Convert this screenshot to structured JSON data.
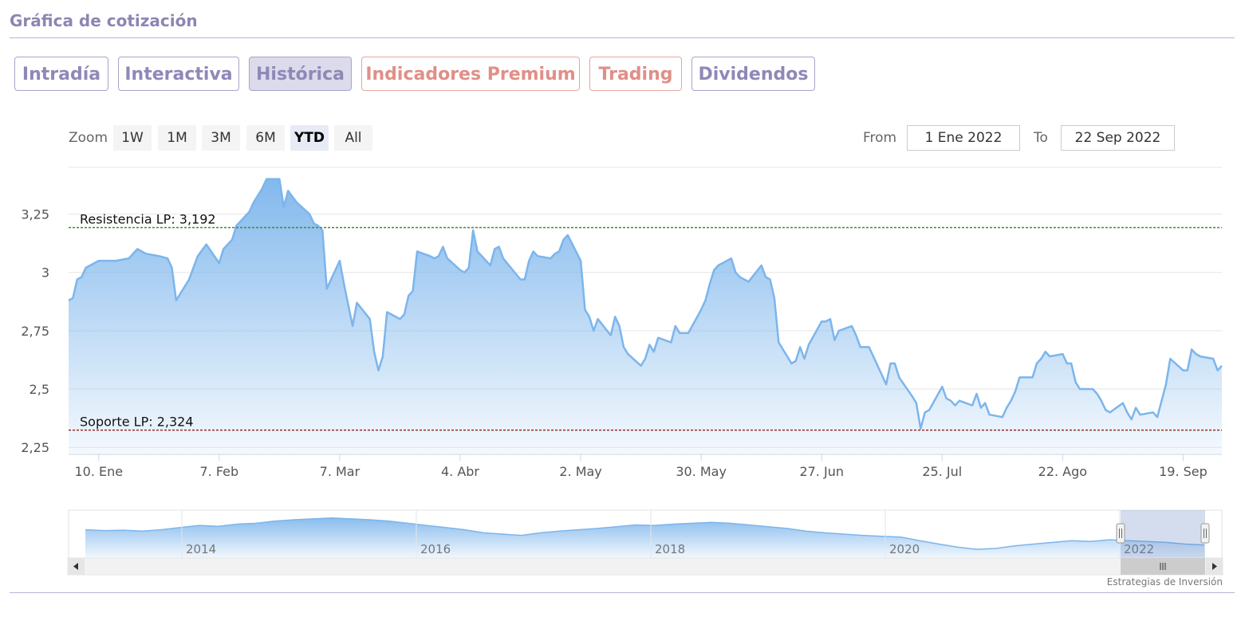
{
  "header": {
    "title": "Gráfica de cotización"
  },
  "tabs": [
    {
      "label": "Intradía",
      "active": false,
      "premium": false
    },
    {
      "label": "Interactiva",
      "active": false,
      "premium": false
    },
    {
      "label": "Histórica",
      "active": true,
      "premium": false
    },
    {
      "label": "Indicadores Premium",
      "active": false,
      "premium": true
    },
    {
      "label": "Trading",
      "active": false,
      "premium": true
    },
    {
      "label": "Dividendos",
      "active": false,
      "premium": false
    }
  ],
  "range_selector": {
    "zoom_label": "Zoom",
    "buttons": [
      "1W",
      "1M",
      "3M",
      "6M",
      "YTD",
      "All"
    ],
    "active": "YTD",
    "from_label": "From",
    "from_value": "1 Ene 2022",
    "to_label": "To",
    "to_value": "22 Sep 2022"
  },
  "credit": "Estrategias de Inversión",
  "colors": {
    "line": "#7cb5ec",
    "resistance": "#3a8a3a",
    "support": "#8b1a1a",
    "accent": "#8c86b3"
  },
  "chart_data": {
    "type": "area",
    "title": "",
    "xlabel": "",
    "ylabel": "",
    "x_range": [
      "2022-01-01",
      "2022-09-22"
    ],
    "ylim": [
      2.22,
      3.45
    ],
    "yticks": [
      2.25,
      2.5,
      2.75,
      3,
      3.25
    ],
    "ytick_labels": [
      "2,25",
      "2,5",
      "2,75",
      "3",
      "3,25"
    ],
    "xticks": [
      {
        "date": "2022-01-10",
        "label": "10. Ene"
      },
      {
        "date": "2022-02-07",
        "label": "7. Feb"
      },
      {
        "date": "2022-03-07",
        "label": "7. Mar"
      },
      {
        "date": "2022-04-04",
        "label": "4. Abr"
      },
      {
        "date": "2022-05-02",
        "label": "2. May"
      },
      {
        "date": "2022-05-30",
        "label": "30. May"
      },
      {
        "date": "2022-06-27",
        "label": "27. Jun"
      },
      {
        "date": "2022-07-25",
        "label": "25. Jul"
      },
      {
        "date": "2022-08-22",
        "label": "22. Ago"
      },
      {
        "date": "2022-09-19",
        "label": "19. Sep"
      }
    ],
    "series": [
      {
        "points": [
          [
            "2022-01-03",
            2.88
          ],
          [
            "2022-01-04",
            2.89
          ],
          [
            "2022-01-05",
            2.97
          ],
          [
            "2022-01-06",
            2.98
          ],
          [
            "2022-01-07",
            3.02
          ],
          [
            "2022-01-10",
            3.05
          ],
          [
            "2022-01-12",
            3.05
          ],
          [
            "2022-01-14",
            3.05
          ],
          [
            "2022-01-17",
            3.06
          ],
          [
            "2022-01-19",
            3.1
          ],
          [
            "2022-01-21",
            3.08
          ],
          [
            "2022-01-24",
            3.07
          ],
          [
            "2022-01-26",
            3.06
          ],
          [
            "2022-01-27",
            3.02
          ],
          [
            "2022-01-28",
            2.88
          ],
          [
            "2022-01-31",
            2.97
          ],
          [
            "2022-02-02",
            3.07
          ],
          [
            "2022-02-04",
            3.12
          ],
          [
            "2022-02-07",
            3.04
          ],
          [
            "2022-02-08",
            3.1
          ],
          [
            "2022-02-10",
            3.14
          ],
          [
            "2022-02-11",
            3.2
          ],
          [
            "2022-02-14",
            3.26
          ],
          [
            "2022-02-15",
            3.3
          ],
          [
            "2022-02-17",
            3.36
          ],
          [
            "2022-02-18",
            3.4
          ],
          [
            "2022-02-21",
            3.4
          ],
          [
            "2022-02-22",
            3.28
          ],
          [
            "2022-02-23",
            3.35
          ],
          [
            "2022-02-25",
            3.3
          ],
          [
            "2022-02-28",
            3.25
          ],
          [
            "2022-03-01",
            3.21
          ],
          [
            "2022-03-02",
            3.2
          ],
          [
            "2022-03-03",
            3.18
          ],
          [
            "2022-03-04",
            2.93
          ],
          [
            "2022-03-07",
            3.05
          ],
          [
            "2022-03-08",
            2.95
          ],
          [
            "2022-03-10",
            2.77
          ],
          [
            "2022-03-11",
            2.87
          ],
          [
            "2022-03-14",
            2.8
          ],
          [
            "2022-03-15",
            2.66
          ],
          [
            "2022-03-16",
            2.58
          ],
          [
            "2022-03-17",
            2.64
          ],
          [
            "2022-03-18",
            2.83
          ],
          [
            "2022-03-21",
            2.8
          ],
          [
            "2022-03-22",
            2.82
          ],
          [
            "2022-03-23",
            2.9
          ],
          [
            "2022-03-24",
            2.92
          ],
          [
            "2022-03-25",
            3.09
          ],
          [
            "2022-03-28",
            3.07
          ],
          [
            "2022-03-29",
            3.06
          ],
          [
            "2022-03-30",
            3.07
          ],
          [
            "2022-03-31",
            3.11
          ],
          [
            "2022-04-01",
            3.06
          ],
          [
            "2022-04-04",
            3.01
          ],
          [
            "2022-04-05",
            3.0
          ],
          [
            "2022-04-06",
            3.02
          ],
          [
            "2022-04-07",
            3.18
          ],
          [
            "2022-04-08",
            3.09
          ],
          [
            "2022-04-11",
            3.03
          ],
          [
            "2022-04-12",
            3.1
          ],
          [
            "2022-04-13",
            3.11
          ],
          [
            "2022-04-14",
            3.06
          ],
          [
            "2022-04-18",
            2.97
          ],
          [
            "2022-04-19",
            2.97
          ],
          [
            "2022-04-20",
            3.05
          ],
          [
            "2022-04-21",
            3.09
          ],
          [
            "2022-04-22",
            3.07
          ],
          [
            "2022-04-25",
            3.06
          ],
          [
            "2022-04-26",
            3.08
          ],
          [
            "2022-04-27",
            3.09
          ],
          [
            "2022-04-28",
            3.14
          ],
          [
            "2022-04-29",
            3.16
          ],
          [
            "2022-05-02",
            3.05
          ],
          [
            "2022-05-03",
            2.84
          ],
          [
            "2022-05-04",
            2.81
          ],
          [
            "2022-05-05",
            2.75
          ],
          [
            "2022-05-06",
            2.8
          ],
          [
            "2022-05-09",
            2.73
          ],
          [
            "2022-05-10",
            2.81
          ],
          [
            "2022-05-11",
            2.77
          ],
          [
            "2022-05-12",
            2.68
          ],
          [
            "2022-05-13",
            2.65
          ],
          [
            "2022-05-16",
            2.6
          ],
          [
            "2022-05-17",
            2.63
          ],
          [
            "2022-05-18",
            2.69
          ],
          [
            "2022-05-19",
            2.66
          ],
          [
            "2022-05-20",
            2.72
          ],
          [
            "2022-05-23",
            2.7
          ],
          [
            "2022-05-24",
            2.77
          ],
          [
            "2022-05-25",
            2.74
          ],
          [
            "2022-05-26",
            2.74
          ],
          [
            "2022-05-27",
            2.74
          ],
          [
            "2022-05-30",
            2.84
          ],
          [
            "2022-05-31",
            2.88
          ],
          [
            "2022-06-01",
            2.95
          ],
          [
            "2022-06-02",
            3.01
          ],
          [
            "2022-06-03",
            3.03
          ],
          [
            "2022-06-06",
            3.06
          ],
          [
            "2022-06-07",
            3.0
          ],
          [
            "2022-06-08",
            2.98
          ],
          [
            "2022-06-09",
            2.97
          ],
          [
            "2022-06-10",
            2.96
          ],
          [
            "2022-06-13",
            3.03
          ],
          [
            "2022-06-14",
            2.98
          ],
          [
            "2022-06-15",
            2.97
          ],
          [
            "2022-06-16",
            2.89
          ],
          [
            "2022-06-17",
            2.7
          ],
          [
            "2022-06-20",
            2.61
          ],
          [
            "2022-06-21",
            2.62
          ],
          [
            "2022-06-22",
            2.68
          ],
          [
            "2022-06-23",
            2.63
          ],
          [
            "2022-06-24",
            2.69
          ],
          [
            "2022-06-27",
            2.79
          ],
          [
            "2022-06-28",
            2.79
          ],
          [
            "2022-06-29",
            2.8
          ],
          [
            "2022-06-30",
            2.71
          ],
          [
            "2022-07-01",
            2.75
          ],
          [
            "2022-07-04",
            2.77
          ],
          [
            "2022-07-05",
            2.73
          ],
          [
            "2022-07-06",
            2.68
          ],
          [
            "2022-07-07",
            2.68
          ],
          [
            "2022-07-08",
            2.68
          ],
          [
            "2022-07-11",
            2.56
          ],
          [
            "2022-07-12",
            2.52
          ],
          [
            "2022-07-13",
            2.61
          ],
          [
            "2022-07-14",
            2.61
          ],
          [
            "2022-07-15",
            2.55
          ],
          [
            "2022-07-18",
            2.47
          ],
          [
            "2022-07-19",
            2.44
          ],
          [
            "2022-07-20",
            2.33
          ],
          [
            "2022-07-21",
            2.4
          ],
          [
            "2022-07-22",
            2.41
          ],
          [
            "2022-07-25",
            2.51
          ],
          [
            "2022-07-26",
            2.46
          ],
          [
            "2022-07-27",
            2.45
          ],
          [
            "2022-07-28",
            2.43
          ],
          [
            "2022-07-29",
            2.45
          ],
          [
            "2022-08-01",
            2.43
          ],
          [
            "2022-08-02",
            2.48
          ],
          [
            "2022-08-03",
            2.42
          ],
          [
            "2022-08-04",
            2.44
          ],
          [
            "2022-08-05",
            2.39
          ],
          [
            "2022-08-08",
            2.38
          ],
          [
            "2022-08-09",
            2.42
          ],
          [
            "2022-08-10",
            2.45
          ],
          [
            "2022-08-11",
            2.49
          ],
          [
            "2022-08-12",
            2.55
          ],
          [
            "2022-08-15",
            2.55
          ],
          [
            "2022-08-16",
            2.61
          ],
          [
            "2022-08-17",
            2.63
          ],
          [
            "2022-08-18",
            2.66
          ],
          [
            "2022-08-19",
            2.64
          ],
          [
            "2022-08-22",
            2.65
          ],
          [
            "2022-08-23",
            2.61
          ],
          [
            "2022-08-24",
            2.61
          ],
          [
            "2022-08-25",
            2.53
          ],
          [
            "2022-08-26",
            2.5
          ],
          [
            "2022-08-29",
            2.5
          ],
          [
            "2022-08-30",
            2.48
          ],
          [
            "2022-08-31",
            2.45
          ],
          [
            "2022-09-01",
            2.41
          ],
          [
            "2022-09-02",
            2.4
          ],
          [
            "2022-09-05",
            2.44
          ],
          [
            "2022-09-06",
            2.4
          ],
          [
            "2022-09-07",
            2.37
          ],
          [
            "2022-09-08",
            2.42
          ],
          [
            "2022-09-09",
            2.39
          ],
          [
            "2022-09-12",
            2.4
          ],
          [
            "2022-09-13",
            2.38
          ],
          [
            "2022-09-14",
            2.45
          ],
          [
            "2022-09-15",
            2.52
          ],
          [
            "2022-09-16",
            2.63
          ],
          [
            "2022-09-19",
            2.58
          ],
          [
            "2022-09-20",
            2.58
          ],
          [
            "2022-09-21",
            2.67
          ],
          [
            "2022-09-22",
            2.65
          ],
          [
            "2022-09-23",
            2.64
          ],
          [
            "2022-09-26",
            2.63
          ],
          [
            "2022-09-27",
            2.58
          ],
          [
            "2022-09-28",
            2.6
          ]
        ]
      }
    ],
    "annotations": [
      {
        "label": "Resistencia LP: 3,192",
        "value": 3.192,
        "style": "resistance"
      },
      {
        "label": "Soporte LP: 2,324",
        "value": 2.324,
        "style": "support"
      }
    ],
    "navigator": {
      "year_labels": [
        "2014",
        "2016",
        "2018",
        "2020",
        "2022"
      ],
      "values": [
        2.95,
        2.93,
        2.94,
        2.92,
        2.95,
        3.0,
        3.05,
        3.03,
        3.08,
        3.1,
        3.15,
        3.18,
        3.2,
        3.22,
        3.2,
        3.18,
        3.15,
        3.1,
        3.05,
        3.0,
        2.95,
        2.88,
        2.85,
        2.82,
        2.88,
        2.92,
        2.95,
        2.98,
        3.02,
        3.06,
        3.05,
        3.08,
        3.1,
        3.12,
        3.1,
        3.06,
        3.02,
        2.98,
        2.92,
        2.88,
        2.85,
        2.82,
        2.8,
        2.78,
        2.7,
        2.62,
        2.55,
        2.5,
        2.52,
        2.58,
        2.62,
        2.66,
        2.7,
        2.68,
        2.72,
        2.7,
        2.68,
        2.66,
        2.62,
        2.6
      ]
    }
  }
}
